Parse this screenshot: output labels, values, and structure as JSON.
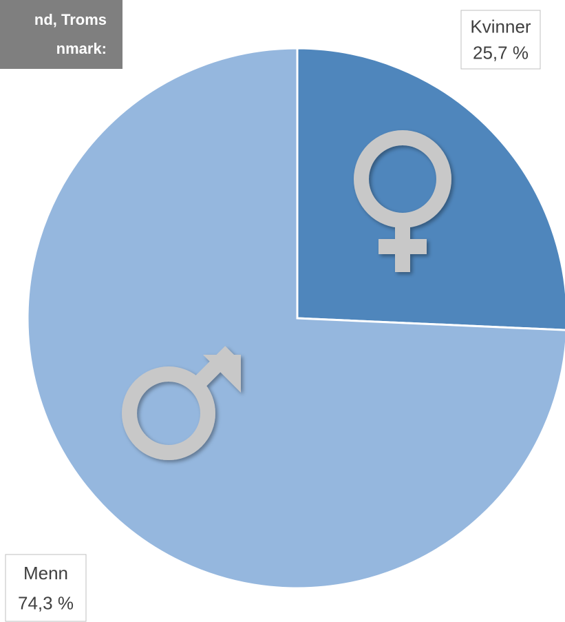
{
  "chart_data": {
    "type": "pie",
    "title": [
      "nd, Troms",
      "nmark:"
    ],
    "categories": [
      "Kvinner",
      "Menn"
    ],
    "values": [
      25.7,
      74.3
    ],
    "value_labels": [
      "25,7 %",
      "74,3 %"
    ],
    "colors": [
      "#4f86bc",
      "#95b7de"
    ]
  }
}
